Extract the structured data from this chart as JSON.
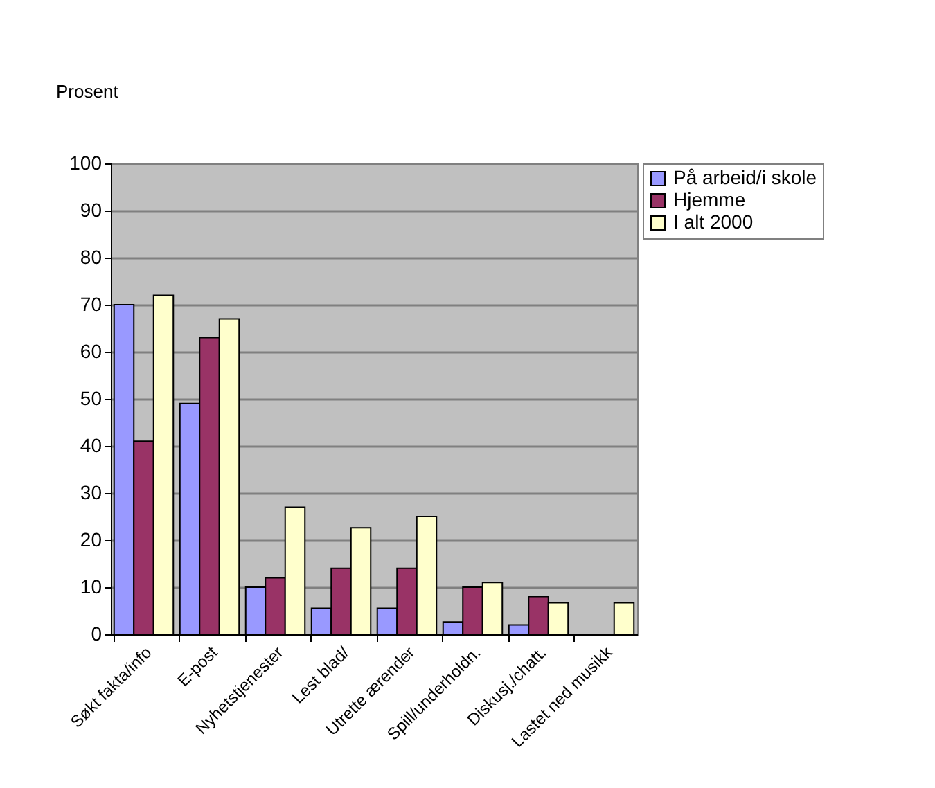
{
  "chart_data": {
    "type": "bar",
    "ylabel": "Prosent",
    "categories": [
      "Søkt fakta/info",
      "E-post",
      "Nyhetstjenester",
      "Lest blad/",
      "Utrette ærender",
      "Spill/underholdn.",
      "Diskusj./chatt.",
      "Lastet ned musikk"
    ],
    "series": [
      {
        "name": "På arbeid/i skole",
        "color": "#9999ff",
        "values": [
          70,
          49,
          10,
          5.5,
          5.5,
          2.6,
          2,
          null
        ]
      },
      {
        "name": "Hjemme",
        "color": "#993366",
        "values": [
          41,
          63,
          12,
          14,
          14,
          10,
          8,
          null
        ]
      },
      {
        "name": "I alt 2000",
        "color": "#ffffcc",
        "values": [
          72,
          67,
          27,
          22.6,
          25,
          11,
          6.7,
          6.7
        ]
      }
    ],
    "ylim": [
      0,
      100
    ],
    "yticks": [
      0,
      10,
      20,
      30,
      40,
      50,
      60,
      70,
      80,
      90,
      100
    ],
    "grid": "y",
    "legend": "top right"
  }
}
